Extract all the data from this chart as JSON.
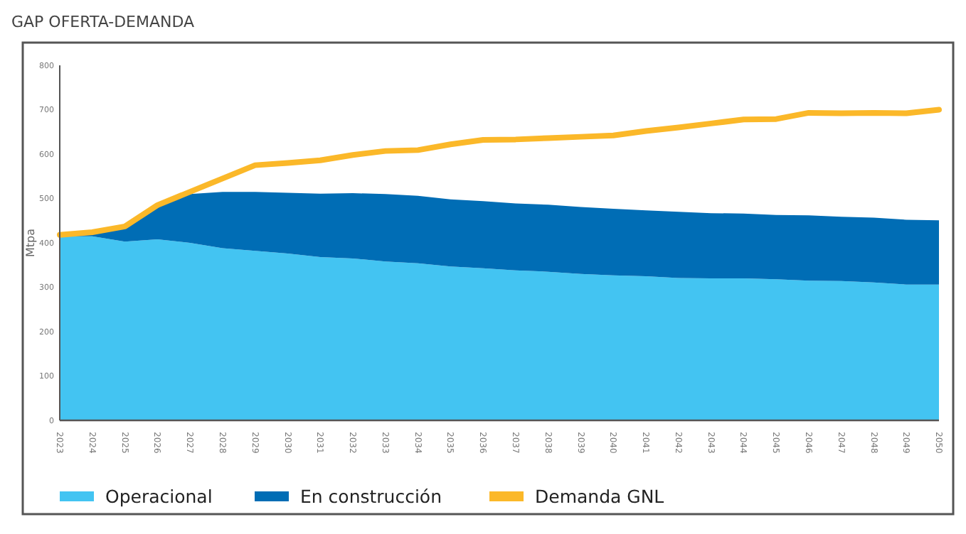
{
  "chart_data": {
    "type": "area",
    "title": "GAP OFERTA-DEMANDA",
    "ylabel": "Mtpa",
    "categories": [
      "2023",
      "2024",
      "2025",
      "2026",
      "2027",
      "2028",
      "2029",
      "2030",
      "2031",
      "2032",
      "2033",
      "2034",
      "2035",
      "2036",
      "2037",
      "2038",
      "2039",
      "2040",
      "2041",
      "2042",
      "2043",
      "2044",
      "2045",
      "2046",
      "2047",
      "2048",
      "2049",
      "2050"
    ],
    "stacked": true,
    "ylim": [
      0,
      800
    ],
    "yticks": [
      0,
      100,
      200,
      300,
      400,
      500,
      600,
      700,
      800
    ],
    "grid": false,
    "legend": "bottom left",
    "series": [
      {
        "name": "Operacional",
        "color": "#43c4f2",
        "values": [
          415,
          415,
          403,
          408,
          400,
          388,
          382,
          376,
          368,
          365,
          358,
          354,
          347,
          343,
          338,
          335,
          330,
          327,
          325,
          321,
          320,
          320,
          318,
          315,
          314,
          311,
          306,
          306
        ]
      },
      {
        "name": "En construcción",
        "color": "#006db5",
        "values": [
          0,
          5,
          29,
          72,
          110,
          127,
          133,
          137,
          143,
          147,
          152,
          152,
          151,
          151,
          151,
          151,
          151,
          150,
          148,
          149,
          147,
          146,
          145,
          147,
          145,
          146,
          146,
          145
        ]
      },
      {
        "name": "Demanda GNL",
        "type": "line",
        "color": "#fbb829",
        "values": [
          418,
          424,
          437,
          485,
          515,
          545,
          575,
          580,
          586,
          598,
          607,
          609,
          622,
          632,
          633,
          636,
          639,
          642,
          652,
          660,
          669,
          678,
          679,
          693,
          692,
          693,
          692,
          700
        ]
      }
    ]
  }
}
